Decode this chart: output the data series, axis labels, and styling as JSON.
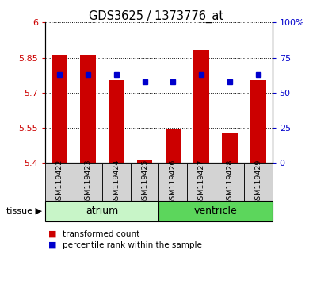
{
  "title": "GDS3625 / 1373776_at",
  "samples": [
    "GSM119422",
    "GSM119423",
    "GSM119424",
    "GSM119425",
    "GSM119426",
    "GSM119427",
    "GSM119428",
    "GSM119429"
  ],
  "red_values": [
    5.862,
    5.862,
    5.752,
    5.415,
    5.548,
    5.882,
    5.528,
    5.752
  ],
  "blue_values": [
    63,
    63,
    63,
    58,
    58,
    63,
    58,
    63
  ],
  "ylim_left": [
    5.4,
    6.0
  ],
  "ylim_right": [
    0,
    100
  ],
  "yticks_left": [
    5.4,
    5.55,
    5.7,
    5.85,
    6.0
  ],
  "yticks_right": [
    0,
    25,
    50,
    75,
    100
  ],
  "groups": [
    {
      "label": "atrium",
      "start": 0,
      "end": 3,
      "color": "#c8f5c8"
    },
    {
      "label": "ventricle",
      "start": 4,
      "end": 7,
      "color": "#5cd65c"
    }
  ],
  "tissue_label": "tissue",
  "legend_items": [
    {
      "label": "transformed count",
      "color": "#cc0000"
    },
    {
      "label": "percentile rank within the sample",
      "color": "#0000cc"
    }
  ],
  "bar_color": "#cc0000",
  "dot_color": "#0000cc",
  "bar_width": 0.55,
  "tick_color_left": "#cc0000",
  "tick_color_right": "#0000cc",
  "ytick_labels_left": [
    "5.4",
    "5.55",
    "5.7",
    "5.85",
    "6"
  ],
  "ytick_labels_right": [
    "0",
    "25",
    "50",
    "75",
    "100%"
  ],
  "sample_box_color": "#d3d3d3"
}
